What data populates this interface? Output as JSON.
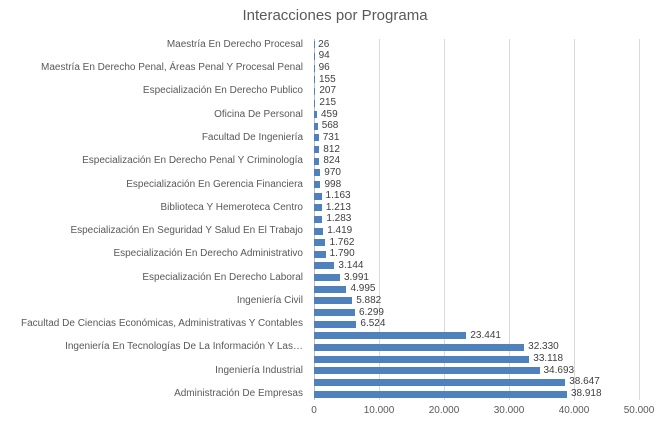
{
  "chart_data": {
    "type": "bar",
    "orientation": "horizontal",
    "title": "Interacciones por Programa",
    "xlabel": "",
    "ylabel": "",
    "xlim": [
      0,
      50000
    ],
    "grid": true,
    "legend": false,
    "x_ticks": [
      "0",
      "10.000",
      "20.000",
      "30.000",
      "40.000",
      "50.000"
    ],
    "categories": [
      "Maestría En Derecho Procesal",
      "",
      "Maestría En Derecho Penal, Áreas Penal Y Procesal Penal",
      "",
      "Especialización En Derecho Publico",
      "",
      "Oficina De Personal",
      "",
      "Facultad De Ingeniería",
      "",
      "Especialización En Derecho Penal Y Criminología",
      "",
      "Especialización En Gerencia Financiera",
      "",
      "Biblioteca Y Hemeroteca Centro",
      "",
      "Especialización En Seguridad Y Salud En El Trabajo",
      "",
      "Especialización En Derecho Administrativo",
      "",
      "Especialización En Derecho Laboral",
      "",
      "Ingeniería Civil",
      "",
      "Facultad De Ciencias Económicas, Administrativas Y Contables",
      "",
      "Ingeniería En Tecnologías De La Información Y Las…",
      "",
      "Ingeniería Industrial",
      "",
      "Administración De Empresas"
    ],
    "values": [
      26,
      94,
      96,
      155,
      207,
      215,
      459,
      568,
      731,
      812,
      824,
      970,
      998,
      1163,
      1213,
      1283,
      1419,
      1762,
      1790,
      3144,
      3991,
      4995,
      5882,
      6299,
      6524,
      23441,
      32330,
      33118,
      34693,
      38647,
      38918
    ],
    "value_labels": [
      "26",
      "94",
      "96",
      "155",
      "207",
      "215",
      "459",
      "568",
      "731",
      "812",
      "824",
      "970",
      "998",
      "1.163",
      "1.213",
      "1.283",
      "1.419",
      "1.762",
      "1.790",
      "3.144",
      "3.991",
      "4.995",
      "5.882",
      "6.299",
      "6.524",
      "23.441",
      "32.330",
      "33.118",
      "34.693",
      "38.647",
      "38.918"
    ],
    "colors": {
      "bar": "#4F81BD",
      "gridline": "#D9D9D9",
      "axis_line": "#BFBFBF",
      "title_text": "#595959",
      "axis_text": "#595959",
      "data_label_text": "#404040"
    }
  }
}
